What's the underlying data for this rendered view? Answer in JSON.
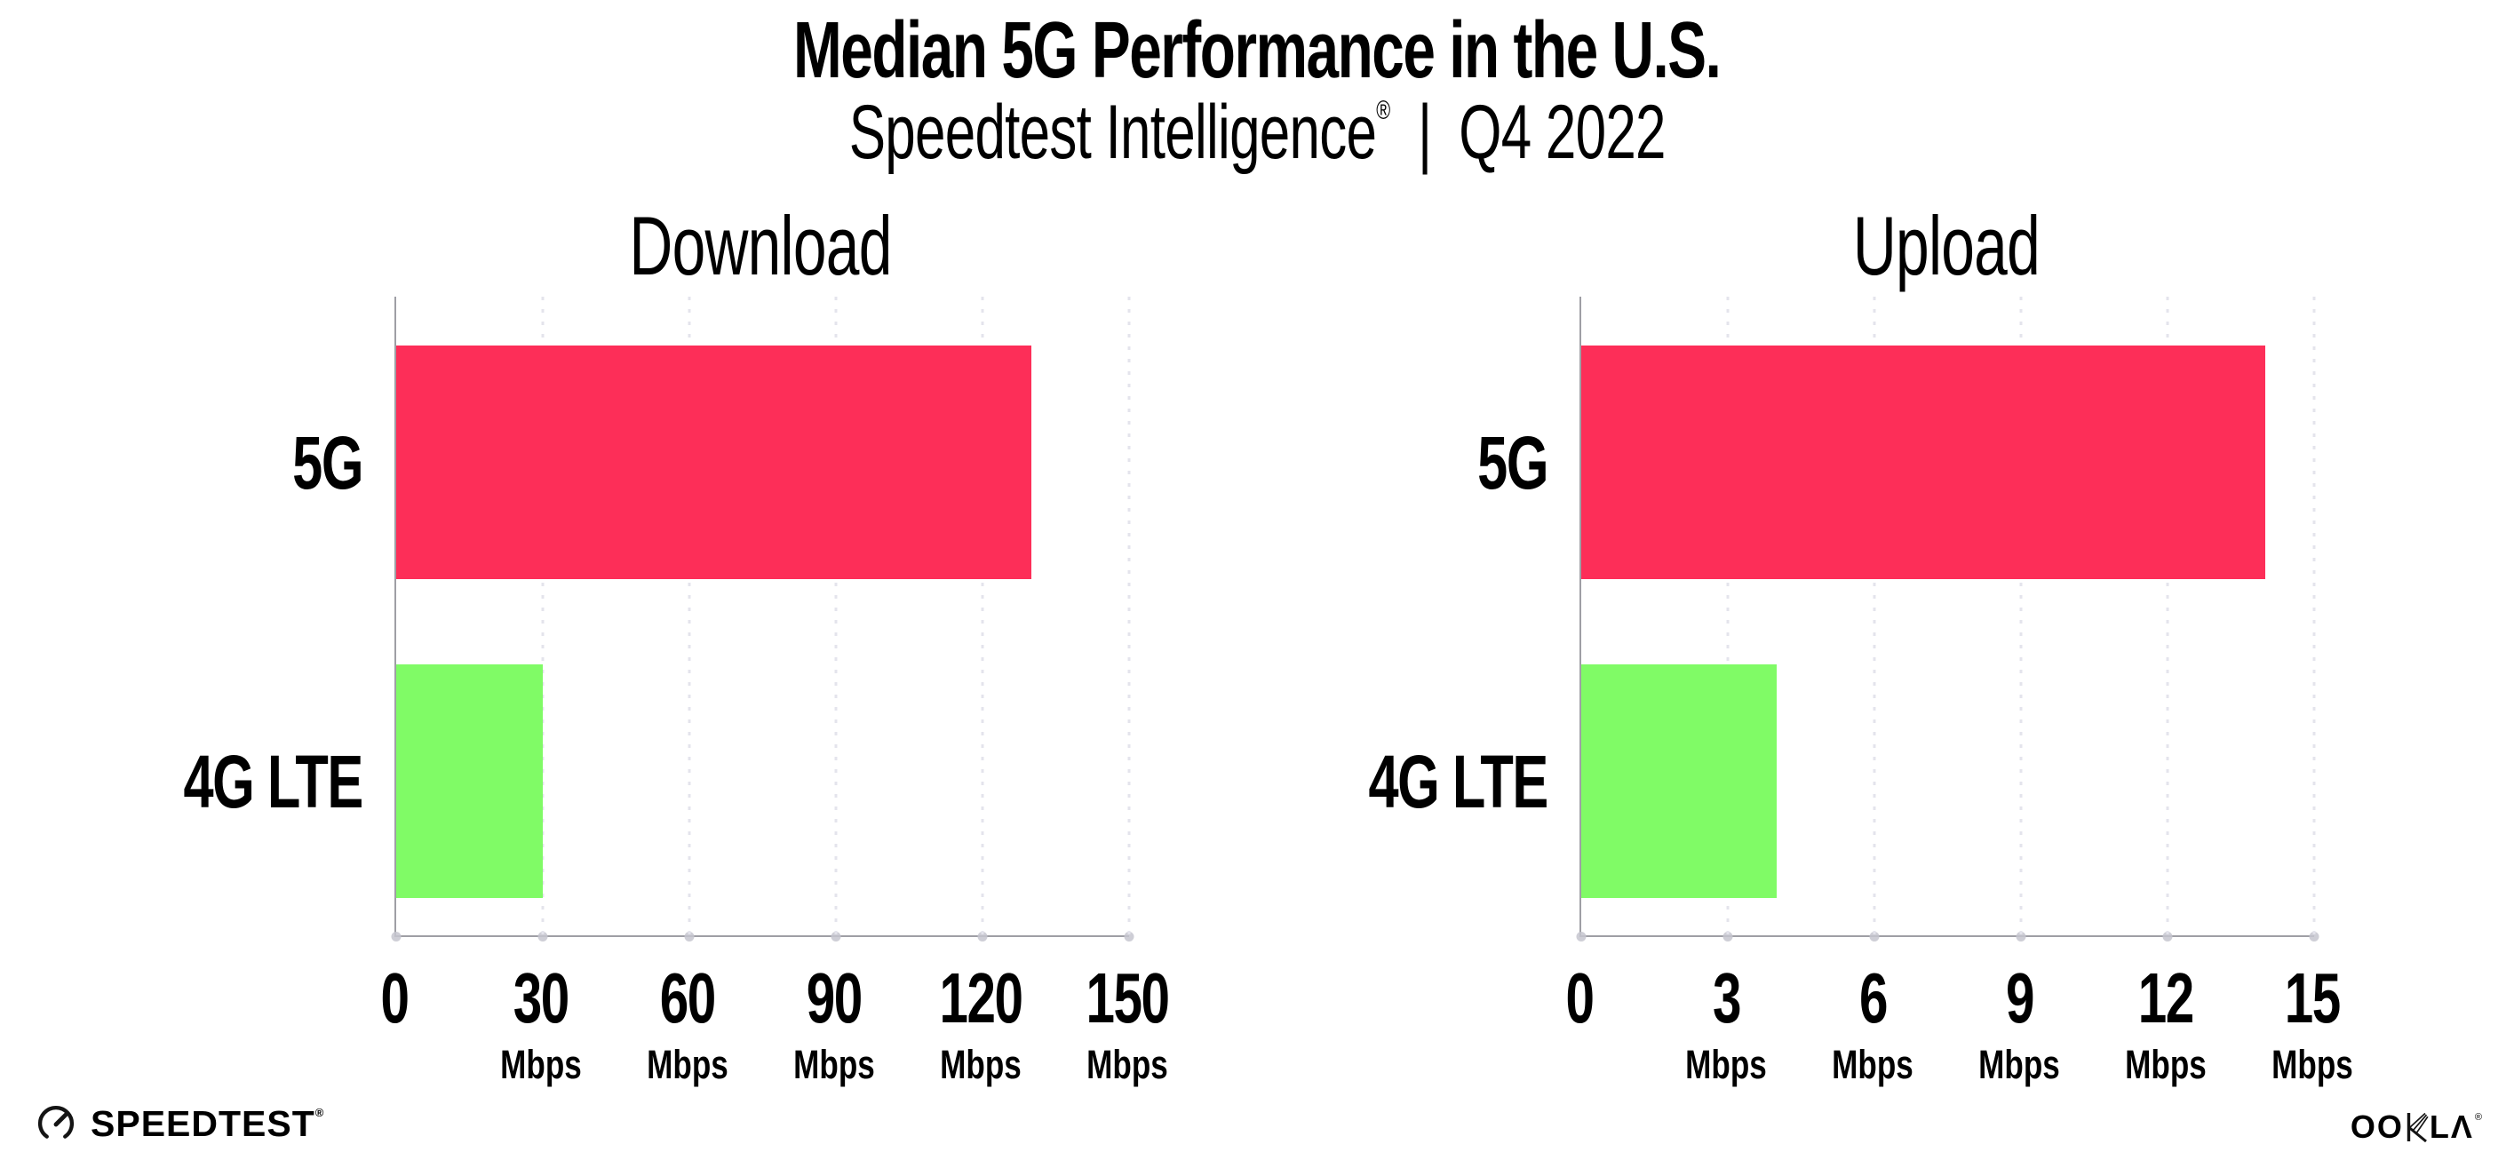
{
  "header": {
    "title": "Median 5G Performance in the U.S.",
    "subtitle_brand": "Speedtest Intelligence",
    "registered_mark": "®",
    "subtitle_separator": "|",
    "subtitle_period": "Q4 2022"
  },
  "colors": {
    "bar_5g": "#FD2E58",
    "bar_4g_lte": "#80FB66",
    "axis_line": "#9f9fa5",
    "gridline_dots": "#e4e4ec",
    "text": "#000000",
    "background": "#ffffff"
  },
  "chart_data": [
    {
      "type": "bar",
      "orientation": "horizontal",
      "title": "Download",
      "categories": [
        "5G",
        "4G LTE"
      ],
      "values": [
        130,
        30
      ],
      "unit": "Mbps",
      "xlim": [
        0,
        150
      ],
      "xticks": [
        0,
        30,
        60,
        90,
        120,
        150
      ],
      "bar_colors": [
        "#FD2E58",
        "#80FB66"
      ],
      "grid": "dotted-vertical",
      "legend": "none"
    },
    {
      "type": "bar",
      "orientation": "horizontal",
      "title": "Upload",
      "categories": [
        "5G",
        "4G LTE"
      ],
      "values": [
        14,
        4
      ],
      "unit": "Mbps",
      "xlim": [
        0,
        15
      ],
      "xticks": [
        0,
        3,
        6,
        9,
        12,
        15
      ],
      "bar_colors": [
        "#FD2E58",
        "#80FB66"
      ],
      "grid": "dotted-vertical",
      "legend": "none"
    }
  ],
  "footer": {
    "speedtest_label": "SPEEDTEST",
    "speedtest_reg": "®",
    "ookla_pre": "OO",
    "ookla_post": "LΛ",
    "ookla_full": "OOKLA",
    "ookla_reg": "®"
  }
}
